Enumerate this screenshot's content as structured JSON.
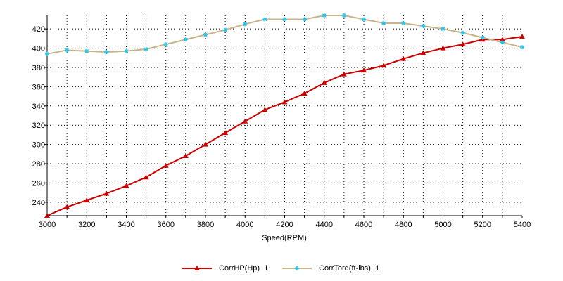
{
  "chart_data": {
    "type": "line",
    "xlabel": "Speed(RPM)",
    "ylabel": "",
    "xlim": [
      3000,
      5400
    ],
    "ylim": [
      226,
      434
    ],
    "x_ticks": [
      3000,
      3200,
      3400,
      3600,
      3800,
      4000,
      4200,
      4400,
      4600,
      4800,
      5000,
      5200,
      5400
    ],
    "y_ticks": [
      240,
      260,
      280,
      300,
      320,
      340,
      360,
      380,
      400,
      420
    ],
    "grid": true,
    "legend_position": "bottom",
    "x": [
      3000,
      3100,
      3200,
      3300,
      3400,
      3500,
      3600,
      3700,
      3800,
      3900,
      4000,
      4100,
      4200,
      4300,
      4400,
      4500,
      4600,
      4700,
      4800,
      4900,
      5000,
      5100,
      5200,
      5300,
      5400
    ],
    "series": [
      {
        "name": "CorrHP(Hp)",
        "legend_suffix": "1",
        "color": "#cc0000",
        "marker": "triangle",
        "values": [
          226,
          235,
          242,
          249,
          257,
          266,
          278,
          288,
          300,
          312,
          324,
          336,
          344,
          353,
          364,
          373,
          377,
          382,
          389,
          395,
          400,
          404,
          409,
          409,
          412
        ]
      },
      {
        "name": "CorrTorq(ft-lbs)",
        "legend_suffix": "1",
        "color": "#c8b48a",
        "marker_color": "#2ec4e8",
        "marker": "star",
        "values": [
          394,
          398,
          397,
          396,
          397,
          399,
          404,
          409,
          414,
          419,
          425,
          430,
          430,
          430,
          434,
          434,
          430,
          426,
          426,
          423,
          420,
          416,
          411,
          406,
          401
        ]
      }
    ]
  }
}
